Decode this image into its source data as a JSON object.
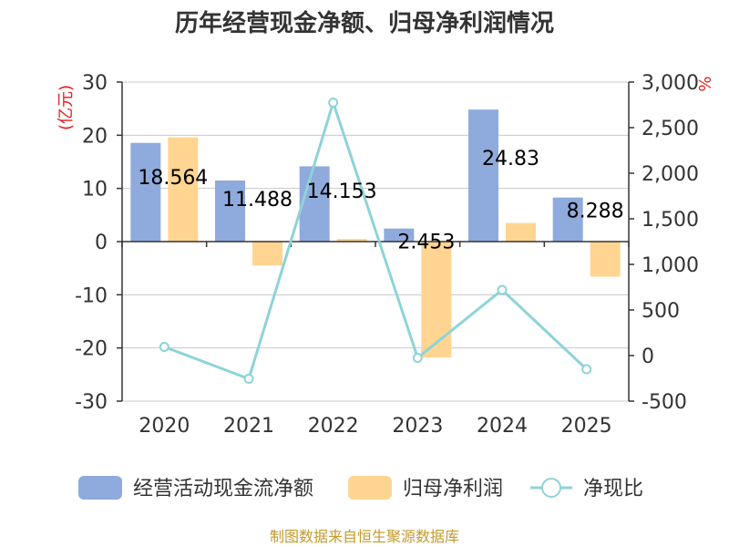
{
  "chart_data": {
    "type": "bar",
    "title": "历年经营现金净额、归母净利润情况",
    "categories": [
      "2020",
      "2021",
      "2022",
      "2023",
      "2024",
      "2025"
    ],
    "series": [
      {
        "name": "经营活动现金流净额",
        "kind": "bar",
        "axis": "left",
        "color": "#8faadc",
        "values": [
          18.564,
          11.488,
          14.153,
          2.453,
          24.83,
          8.288
        ],
        "labels": [
          "18.564",
          "11.488",
          "14.153",
          "2.453",
          "24.83",
          "8.288"
        ]
      },
      {
        "name": "归母净利润",
        "kind": "bar",
        "axis": "left",
        "color": "#ffd591",
        "values": [
          19.6,
          -4.5,
          0.5,
          -21.8,
          3.5,
          -6.6
        ]
      },
      {
        "name": "净现比",
        "kind": "line",
        "axis": "right",
        "color": "#8ed3d8",
        "values": [
          95,
          -255,
          2775,
          -25,
          720,
          -150
        ]
      }
    ],
    "y_left": {
      "label": "(亿元)",
      "min": -30,
      "max": 30,
      "ticks": [
        30,
        20,
        10,
        0,
        -10,
        -20,
        -30
      ],
      "tick_labels": [
        "30",
        "20",
        "10",
        "0",
        "-10",
        "-20",
        "-30"
      ]
    },
    "y_right": {
      "label": "%",
      "min": -500,
      "max": 3000,
      "ticks": [
        3000,
        2500,
        2000,
        1500,
        1000,
        500,
        0,
        -500
      ],
      "tick_labels": [
        "3,000",
        "2,500",
        "2,000",
        "1,500",
        "1,000",
        "500",
        "0",
        "-500"
      ]
    },
    "legend_position": "bottom",
    "grid": true
  },
  "source": "制图数据来自恒生聚源数据库"
}
